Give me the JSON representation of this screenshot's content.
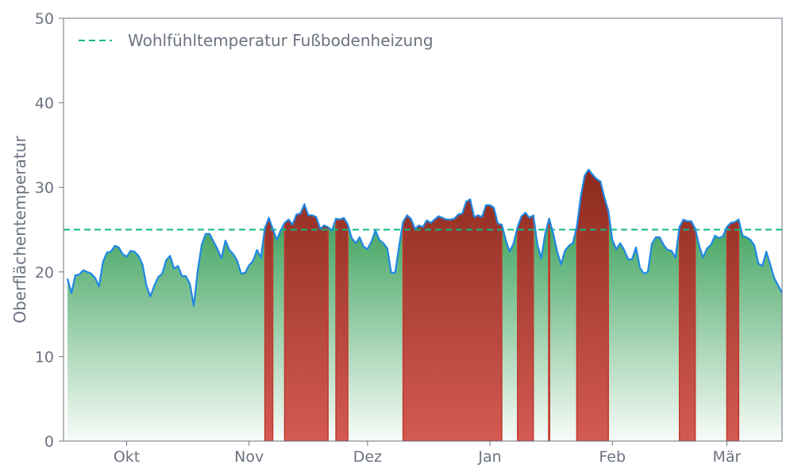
{
  "chart_data": {
    "type": "area",
    "ylabel": "Oberflächentemperatur",
    "ylim": [
      0,
      50
    ],
    "y_ticks": [
      0,
      10,
      20,
      30,
      40,
      50
    ],
    "x_range": [
      "2023-09-15",
      "2024-03-15"
    ],
    "x_ticks": [
      {
        "date": "2023-10-01",
        "label": "Okt"
      },
      {
        "date": "2023-11-01",
        "label": "Nov"
      },
      {
        "date": "2023-12-01",
        "label": "Dez"
      },
      {
        "date": "2024-01-01",
        "label": "Jan"
      },
      {
        "date": "2024-02-01",
        "label": "Feb"
      },
      {
        "date": "2024-03-01",
        "label": "Mär"
      }
    ],
    "grid": false,
    "legend_position": "top-left",
    "threshold": {
      "name": "Wohlfühltemperatur Fußbodenheizung",
      "value": 25,
      "color": "#10b981"
    },
    "series": {
      "color": "#1e88e5",
      "fill_below_color": "#3fa35e",
      "fill_above_color": "#c0392b",
      "x_start": "2023-09-16",
      "interval_days": 1,
      "values": [
        19.2,
        17.5,
        19.6,
        19.7,
        20.2,
        20.0,
        19.8,
        19.3,
        18.3,
        21.2,
        22.3,
        22.4,
        23.1,
        22.9,
        22.1,
        21.8,
        22.5,
        22.4,
        21.9,
        20.9,
        18.4,
        17.1,
        18.4,
        19.4,
        19.8,
        21.4,
        21.9,
        20.4,
        20.7,
        19.5,
        19.5,
        18.6,
        16.0,
        20.2,
        23.2,
        24.5,
        24.5,
        23.6,
        22.7,
        21.6,
        23.7,
        22.6,
        22.1,
        21.3,
        19.8,
        19.9,
        20.8,
        21.3,
        22.6,
        21.7,
        25.2,
        26.4,
        25.1,
        23.8,
        24.9,
        25.8,
        26.2,
        25.6,
        26.8,
        26.9,
        28.0,
        26.7,
        26.7,
        26.5,
        25.1,
        25.5,
        25.3,
        24.9,
        26.3,
        26.2,
        26.4,
        25.6,
        24.0,
        23.4,
        24.1,
        23.0,
        22.7,
        23.6,
        24.9,
        23.8,
        23.4,
        22.8,
        19.9,
        19.9,
        23.1,
        25.9,
        26.7,
        26.3,
        25.1,
        25.5,
        25.3,
        26.1,
        25.8,
        26.2,
        26.6,
        26.4,
        26.2,
        26.2,
        26.3,
        26.8,
        26.9,
        28.3,
        28.6,
        26.5,
        26.7,
        26.5,
        27.9,
        27.9,
        27.6,
        25.7,
        25.6,
        23.8,
        22.4,
        23.4,
        25.3,
        26.6,
        27.0,
        26.4,
        26.7,
        23.3,
        21.6,
        24.5,
        26.3,
        24.6,
        22.5,
        20.9,
        22.5,
        23.1,
        23.4,
        25.3,
        28.9,
        31.4,
        32.1,
        31.5,
        31.0,
        30.7,
        28.8,
        27.2,
        23.8,
        22.7,
        23.4,
        22.6,
        21.5,
        21.5,
        22.9,
        20.5,
        19.8,
        20.0,
        23.3,
        24.1,
        24.1,
        23.2,
        22.6,
        22.5,
        21.7,
        25.3,
        26.2,
        26.0,
        26.0,
        25.1,
        23.1,
        21.7,
        22.8,
        23.2,
        24.3,
        24.0,
        24.2,
        25.3,
        25.8,
        25.9,
        26.2,
        24.3,
        24.1,
        23.8,
        23.1,
        21.0,
        20.7,
        22.4,
        20.9,
        19.3,
        18.4,
        17.5
      ]
    }
  }
}
